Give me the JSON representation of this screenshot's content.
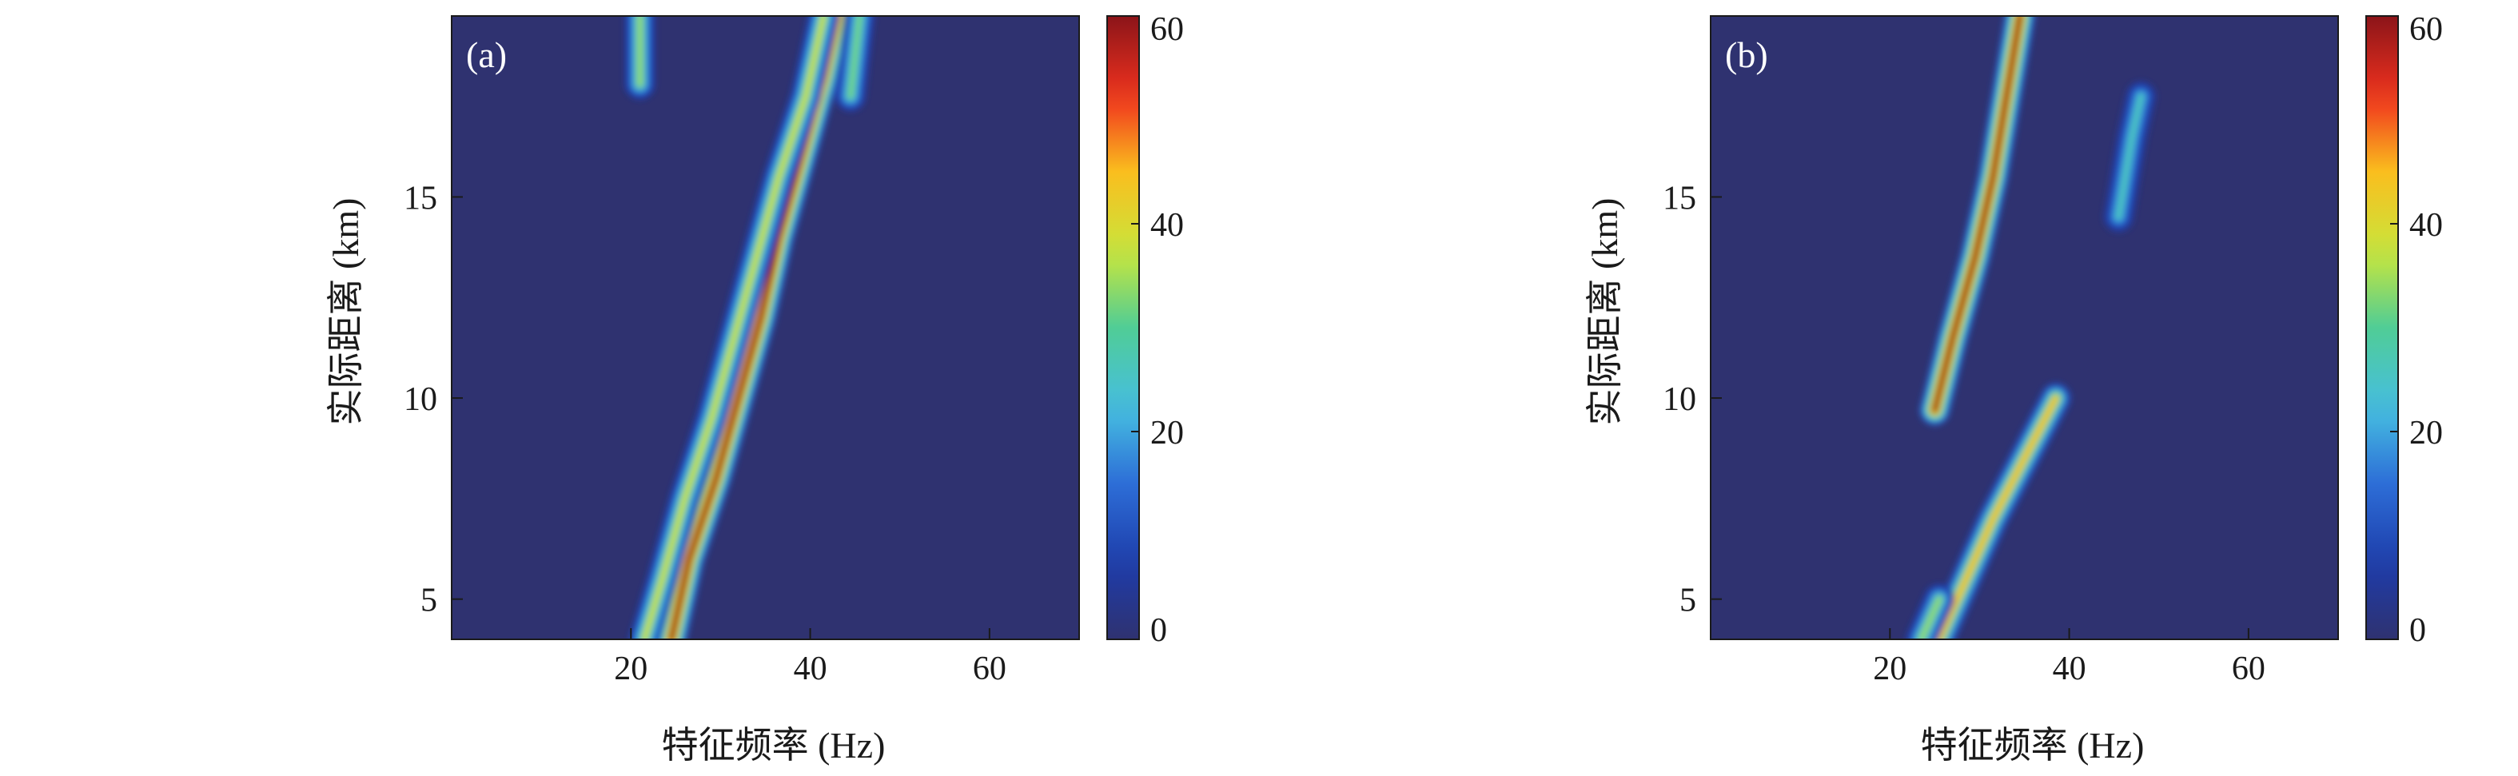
{
  "chart_data": [
    {
      "type": "heatmap",
      "panel_label": "(a)",
      "xlabel": "特征频率 (Hz)",
      "ylabel": "实际距离 (km)",
      "xlim": [
        0,
        70
      ],
      "ylim": [
        4,
        19.5
      ],
      "xticks": [
        20,
        40,
        60
      ],
      "yticks": [
        5,
        10,
        15
      ],
      "colorbar": {
        "min": 0,
        "max": 60,
        "ticks": [
          0,
          20,
          40,
          60
        ],
        "colormap": "jet"
      },
      "background_color": "#2f3270",
      "ridges": [
        {
          "name": "",
          "points": [
            [
              24.5,
              4.0
            ],
            [
              26.5,
              6.0
            ],
            [
              29.5,
              8.0
            ],
            [
              32.0,
              10.0
            ],
            [
              34.5,
              12.0
            ],
            [
              36.5,
              14.0
            ],
            [
              39.0,
              16.0
            ],
            [
              41.5,
              18.0
            ],
            [
              43.0,
              19.5
            ]
          ],
          "peak": 60
        },
        {
          "name": "",
          "points": [
            [
              21.5,
              4.0
            ],
            [
              23.5,
              5.5
            ],
            [
              26.0,
              7.5
            ],
            [
              29.0,
              9.5
            ],
            [
              31.5,
              11.5
            ],
            [
              34.0,
              13.5
            ],
            [
              36.5,
              15.5
            ],
            [
              39.5,
              17.5
            ],
            [
              41.5,
              19.5
            ]
          ],
          "peak": 38
        },
        {
          "name": "",
          "points": [
            [
              44.5,
              17.5
            ],
            [
              45.5,
              19.5
            ]
          ],
          "peak": 32
        },
        {
          "name": "",
          "points": [
            [
              21.0,
              17.8
            ],
            [
              21.0,
              19.5
            ]
          ],
          "peak": 34
        }
      ]
    },
    {
      "type": "heatmap",
      "panel_label": "(b)",
      "xlabel": "特征频率 (Hz)",
      "ylabel": "实际距离 (km)",
      "xlim": [
        0,
        70
      ],
      "ylim": [
        4,
        19.5
      ],
      "xticks": [
        20,
        40,
        60
      ],
      "yticks": [
        5,
        10,
        15
      ],
      "colorbar": {
        "min": 0,
        "max": 60,
        "ticks": [
          0,
          20,
          40,
          60
        ],
        "colormap": "jet"
      },
      "background_color": "#2f3270",
      "ridges": [
        {
          "name": "",
          "points": [
            [
              25.0,
              9.7
            ],
            [
              27.0,
              11.5
            ],
            [
              29.5,
              13.5
            ],
            [
              31.5,
              15.5
            ],
            [
              33.0,
              17.5
            ],
            [
              34.5,
              19.5
            ]
          ],
          "peak": 60
        },
        {
          "name": "",
          "points": [
            [
              25.5,
              4.0
            ],
            [
              28.5,
              5.5
            ],
            [
              31.5,
              7.0
            ],
            [
              35.0,
              8.5
            ],
            [
              38.5,
              10.0
            ]
          ],
          "peak": 44
        },
        {
          "name": "",
          "points": [
            [
              23.5,
              4.0
            ],
            [
              25.5,
              5.0
            ]
          ],
          "peak": 34
        },
        {
          "name": "",
          "points": [
            [
              45.5,
              14.5
            ],
            [
              47.0,
              16.5
            ],
            [
              48.0,
              17.5
            ]
          ],
          "peak": 26
        }
      ]
    }
  ]
}
